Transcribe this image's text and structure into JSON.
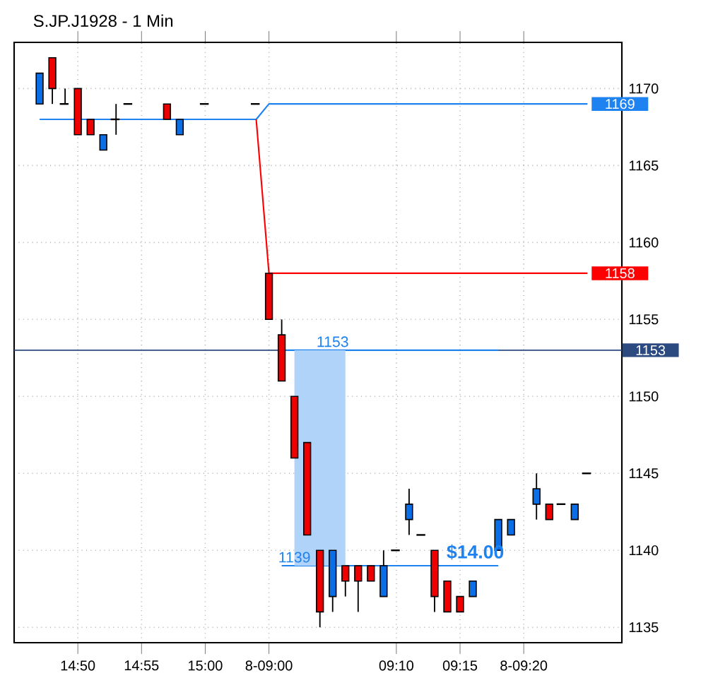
{
  "chart_data": {
    "type": "candlestick",
    "title": "S.JP.J1928 - 1 Min",
    "categories": [
      null,
      null,
      null,
      "14:50",
      null,
      null,
      null,
      null,
      "14:55",
      null,
      null,
      null,
      null,
      "15:00",
      null,
      null,
      null,
      null,
      "8-09:00",
      null,
      null,
      null,
      null,
      null,
      null,
      null,
      null,
      null,
      "09:10",
      null,
      null,
      null,
      null,
      "09:15",
      null,
      null,
      null,
      null,
      "8-09:20",
      null,
      null,
      null,
      null,
      null
    ],
    "ohlc": [
      [
        1169,
        1171,
        1169,
        1171
      ],
      [
        1172,
        1172,
        1169,
        1170
      ],
      [
        1169,
        1170,
        1169,
        1169
      ],
      [
        1170,
        1170,
        1167,
        1167
      ],
      [
        1168,
        1168,
        1167,
        1167
      ],
      [
        1166,
        1167,
        1166,
        1167
      ],
      [
        1168,
        1169,
        1167,
        1168
      ],
      [
        1169,
        1169,
        1169,
        1169
      ],
      null,
      null,
      [
        1169,
        1169,
        1168,
        1168
      ],
      [
        1167,
        1168,
        1167,
        1168
      ],
      null,
      [
        1169,
        1169,
        1169,
        1169
      ],
      null,
      null,
      null,
      [
        1169,
        1169,
        1169,
        1169
      ],
      [
        1158,
        1158,
        1155,
        1155
      ],
      [
        1154,
        1155,
        1151,
        1151
      ],
      [
        1150,
        1150,
        1146,
        1146
      ],
      [
        1147,
        1147,
        1141,
        1141
      ],
      [
        1140,
        1140,
        1135,
        1136
      ],
      [
        1137,
        1140,
        1136,
        1140
      ],
      [
        1139,
        1139,
        1137,
        1138
      ],
      [
        1139,
        1139,
        1136,
        1138
      ],
      [
        1139,
        1139,
        1138,
        1138
      ],
      [
        1137,
        1140,
        1137,
        1139
      ],
      [
        1140,
        1140,
        1140,
        1140
      ],
      [
        1142,
        1144,
        1141,
        1143
      ],
      [
        1141,
        1141,
        1141,
        1141
      ],
      [
        1140,
        1140,
        1136,
        1137
      ],
      [
        1138,
        1138,
        1136,
        1136
      ],
      [
        1137,
        1137,
        1136,
        1136
      ],
      [
        1137,
        1138,
        1137,
        1138
      ],
      null,
      [
        1140,
        1142,
        1140,
        1142
      ],
      [
        1141,
        1142,
        1141,
        1142
      ],
      null,
      [
        1143,
        1145,
        1142,
        1144
      ],
      [
        1143,
        1143,
        1142,
        1142
      ],
      [
        1143,
        1143,
        1143,
        1143
      ],
      [
        1142,
        1143,
        1142,
        1143
      ],
      [
        1145,
        1145,
        1145,
        1145
      ]
    ],
    "colors": [
      "#0a6fe6",
      "#ee0000",
      "#000000",
      "#ee0000",
      "#ee0000",
      "#0a6fe6",
      "#000000",
      "#000000",
      null,
      null,
      "#ee0000",
      "#0a6fe6",
      null,
      "#000000",
      null,
      null,
      null,
      "#000000",
      "#ee0000",
      "#ee0000",
      "#ee0000",
      "#ee0000",
      "#ee0000",
      "#0a6fe6",
      "#ee0000",
      "#ee0000",
      "#ee0000",
      "#0a6fe6",
      "#000000",
      "#0a6fe6",
      "#000000",
      "#ee0000",
      "#ee0000",
      "#ee0000",
      "#0a6fe6",
      null,
      "#0a6fe6",
      "#0a6fe6",
      null,
      "#0a6fe6",
      "#ee0000",
      "#000000",
      "#0a6fe6",
      "#000000"
    ],
    "series": [
      {
        "type": "line",
        "color": "#1e82f0",
        "values": [
          1168,
          1168,
          1168,
          1168,
          1168,
          1168,
          1168,
          1168,
          1168,
          1168,
          1168,
          1168,
          1168,
          1168,
          1168,
          1168,
          1168,
          1168,
          1169,
          1169,
          1169,
          1169,
          1169,
          1169,
          1169,
          1169,
          1169,
          1169,
          1169,
          1169,
          1169,
          1169,
          1169,
          1169,
          1169,
          1169,
          1169,
          1169,
          1169,
          1169,
          1169,
          1169,
          1169,
          1169
        ],
        "value_labels": [
          null,
          null,
          null,
          null,
          null,
          null,
          null,
          null,
          null,
          null,
          null,
          null,
          null,
          null,
          null,
          null,
          null,
          null,
          null,
          null,
          null,
          null,
          null,
          null,
          null,
          null,
          null,
          null,
          null,
          null,
          null,
          null,
          null,
          null,
          null,
          null,
          null,
          null,
          null,
          null,
          null,
          null,
          null,
          "1169"
        ]
      },
      {
        "type": "line",
        "color": "#ff0000",
        "values": [
          null,
          null,
          null,
          null,
          null,
          null,
          null,
          null,
          null,
          null,
          null,
          null,
          null,
          null,
          null,
          null,
          null,
          1168,
          1158,
          1158,
          1158,
          1158,
          1158,
          1158,
          1158,
          1158,
          1158,
          1158,
          1158,
          1158,
          1158,
          1158,
          1158,
          1158,
          1158,
          1158,
          1158,
          1158,
          1158,
          1158,
          1158,
          1158,
          1158,
          1158
        ],
        "value_labels": [
          null,
          null,
          null,
          null,
          null,
          null,
          null,
          null,
          null,
          null,
          null,
          null,
          null,
          null,
          null,
          null,
          null,
          null,
          null,
          null,
          null,
          null,
          null,
          null,
          null,
          null,
          null,
          null,
          null,
          null,
          null,
          null,
          null,
          null,
          null,
          null,
          null,
          null,
          null,
          null,
          null,
          null,
          null,
          "1158"
        ]
      },
      {
        "type": "line",
        "color": "#1e82f0",
        "values": [
          null,
          null,
          null,
          null,
          null,
          null,
          null,
          null,
          null,
          null,
          null,
          null,
          null,
          null,
          null,
          null,
          null,
          null,
          null,
          1153,
          1153,
          1153,
          1153,
          1153,
          1153,
          1153,
          1153,
          1153,
          1153,
          1153,
          1153,
          1153,
          1153,
          1153,
          1153,
          1153,
          1153,
          null,
          null,
          null,
          null,
          null,
          null,
          null
        ],
        "upper": [
          null,
          null,
          null,
          null,
          null,
          null,
          null,
          null,
          null,
          null,
          null,
          null,
          null,
          null,
          null,
          null,
          null,
          null,
          null,
          null,
          1153,
          1153,
          1153,
          1153,
          1153,
          null,
          null,
          null,
          null,
          null,
          null,
          null,
          null,
          null,
          null,
          null,
          null,
          null,
          null,
          null,
          null,
          null,
          null,
          null
        ],
        "lower": [
          null,
          null,
          null,
          null,
          null,
          null,
          null,
          null,
          null,
          null,
          null,
          null,
          null,
          null,
          null,
          null,
          null,
          null,
          null,
          null,
          1139,
          1139,
          1139,
          1139,
          1139,
          null,
          null,
          null,
          null,
          null,
          null,
          null,
          null,
          null,
          null,
          null,
          null,
          null,
          null,
          null,
          null,
          null,
          null,
          null
        ],
        "value_labels": [
          null,
          null,
          null,
          null,
          null,
          null,
          null,
          null,
          null,
          null,
          null,
          null,
          null,
          null,
          null,
          null,
          null,
          null,
          null,
          null,
          null,
          null,
          null,
          "1153",
          null,
          null,
          null,
          null,
          null,
          null,
          null,
          null,
          null,
          null,
          null,
          null,
          null,
          null,
          null,
          null,
          null,
          null,
          null,
          null
        ]
      },
      {
        "type": "line",
        "color": "#1e82f0",
        "values": [
          null,
          null,
          null,
          null,
          null,
          null,
          null,
          null,
          null,
          null,
          null,
          null,
          null,
          null,
          null,
          null,
          null,
          null,
          null,
          1139,
          1139,
          1139,
          1139,
          1139,
          1139,
          1139,
          1139,
          1139,
          1139,
          1139,
          1139,
          1139,
          1139,
          1139,
          1139,
          1139,
          1139,
          null,
          null,
          null,
          null,
          null,
          null,
          null
        ],
        "value_labels": [
          null,
          null,
          null,
          null,
          null,
          null,
          null,
          null,
          null,
          null,
          null,
          null,
          null,
          null,
          null,
          null,
          null,
          null,
          null,
          null,
          "1139",
          null,
          null,
          null,
          null,
          null,
          null,
          null,
          null,
          null,
          null,
          null,
          null,
          null,
          null,
          null,
          null,
          null,
          null,
          null,
          null,
          null,
          null,
          null
        ]
      }
    ],
    "ref_lines": [
      {
        "axis": "y",
        "value": 1153,
        "label": "1153",
        "color": "#2a4a80"
      }
    ],
    "annotations": [
      {
        "text": "$14.00",
        "y": 1139
      }
    ],
    "ylim": [
      1134,
      1173
    ],
    "yticks": [
      1135,
      1140,
      1145,
      1150,
      1155,
      1160,
      1165,
      1170
    ],
    "grid": true
  }
}
